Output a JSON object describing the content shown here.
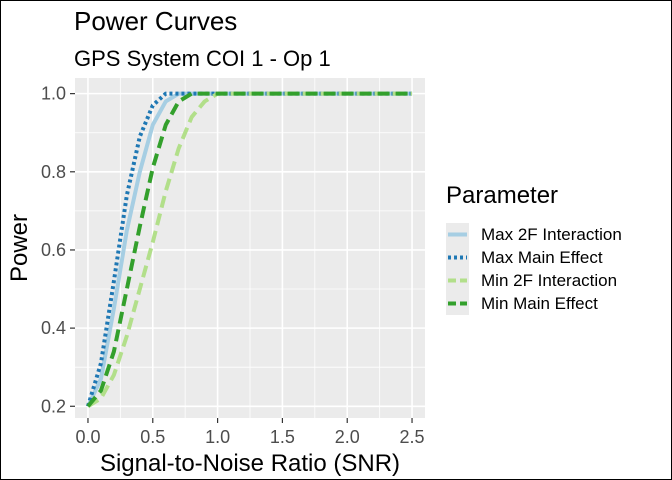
{
  "chart_data": {
    "type": "line",
    "title": "Power Curves",
    "subtitle": "GPS System COI 1 - Op 1",
    "xlabel": "Signal-to-Noise Ratio (SNR)",
    "ylabel": "Power",
    "xlim": [
      -0.1,
      2.6
    ],
    "ylim": [
      0.17,
      1.04
    ],
    "x_ticks": [
      0.0,
      0.5,
      1.0,
      1.5,
      2.0,
      2.5
    ],
    "x_tick_labels": [
      "0.0",
      "0.5",
      "1.0",
      "1.5",
      "2.0",
      "2.5"
    ],
    "y_ticks": [
      0.2,
      0.4,
      0.6,
      0.8,
      1.0
    ],
    "y_tick_labels": [
      "0.2",
      "0.4",
      "0.6",
      "0.8",
      "1.0"
    ],
    "grid": true,
    "legend": {
      "title": "Parameter",
      "position": "right"
    },
    "series": [
      {
        "name": "Max 2F Interaction",
        "color": "#a6cee3",
        "dash": "solid",
        "points": [
          [
            0.0,
            0.2
          ],
          [
            0.1,
            0.27
          ],
          [
            0.2,
            0.45
          ],
          [
            0.3,
            0.65
          ],
          [
            0.4,
            0.8
          ],
          [
            0.5,
            0.92
          ],
          [
            0.6,
            0.98
          ],
          [
            0.7,
            1.0
          ],
          [
            2.5,
            1.0
          ]
        ]
      },
      {
        "name": "Max Main Effect",
        "color": "#1f78b4",
        "dash": "dotted",
        "points": [
          [
            0.0,
            0.2
          ],
          [
            0.1,
            0.31
          ],
          [
            0.2,
            0.52
          ],
          [
            0.3,
            0.74
          ],
          [
            0.4,
            0.89
          ],
          [
            0.5,
            0.97
          ],
          [
            0.6,
            1.0
          ],
          [
            2.5,
            1.0
          ]
        ]
      },
      {
        "name": "Min 2F Interaction",
        "color": "#b2df8a",
        "dash": "dashed",
        "points": [
          [
            0.0,
            0.2
          ],
          [
            0.1,
            0.22
          ],
          [
            0.2,
            0.28
          ],
          [
            0.3,
            0.38
          ],
          [
            0.4,
            0.5
          ],
          [
            0.5,
            0.62
          ],
          [
            0.6,
            0.75
          ],
          [
            0.7,
            0.86
          ],
          [
            0.8,
            0.94
          ],
          [
            0.9,
            0.98
          ],
          [
            1.0,
            1.0
          ],
          [
            2.5,
            1.0
          ]
        ]
      },
      {
        "name": "Min Main Effect",
        "color": "#33a02c",
        "dash": "dashed",
        "points": [
          [
            0.0,
            0.2
          ],
          [
            0.1,
            0.24
          ],
          [
            0.2,
            0.34
          ],
          [
            0.3,
            0.5
          ],
          [
            0.4,
            0.66
          ],
          [
            0.5,
            0.81
          ],
          [
            0.6,
            0.92
          ],
          [
            0.7,
            0.98
          ],
          [
            0.8,
            1.0
          ],
          [
            2.5,
            1.0
          ]
        ]
      }
    ]
  }
}
